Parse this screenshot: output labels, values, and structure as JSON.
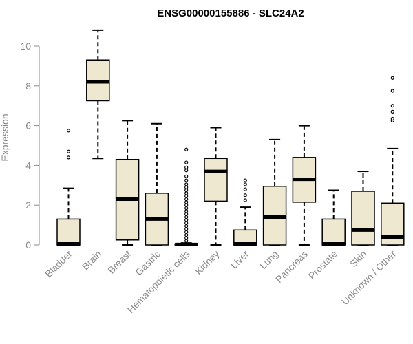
{
  "chart_data": {
    "type": "boxplot",
    "title": "ENSG00000155886 - SLC24A2",
    "ylabel": "Expression",
    "xlabel": "",
    "ylim": [
      0,
      11
    ],
    "yticks": [
      0,
      2,
      4,
      6,
      8,
      10
    ],
    "grid": false,
    "colors": {
      "box_fill": "#efe8d0",
      "stroke": "#000000",
      "axis": "#8a8a8a"
    },
    "categories": [
      "Bladder",
      "Brain",
      "Breast",
      "Gastric",
      "Hematopoietic cells",
      "Kidney",
      "Liver",
      "Lung",
      "Pancreas",
      "Prostate",
      "Skin",
      "Unknown / Other"
    ],
    "boxes": [
      {
        "category": "Bladder",
        "min": 0,
        "q1": 0,
        "median": 0.05,
        "q3": 1.3,
        "max": 2.85,
        "outliers": [
          4.4,
          4.7,
          5.75
        ]
      },
      {
        "category": "Brain",
        "min": 4.35,
        "q1": 7.25,
        "median": 8.2,
        "q3": 9.3,
        "max": 10.8,
        "outliers": []
      },
      {
        "category": "Breast",
        "min": 0,
        "q1": 0.25,
        "median": 2.3,
        "q3": 4.3,
        "max": 6.25,
        "outliers": []
      },
      {
        "category": "Gastric",
        "min": 0,
        "q1": 0,
        "median": 1.3,
        "q3": 2.6,
        "max": 6.1,
        "outliers": []
      },
      {
        "category": "Hematopoietic cells",
        "min": 0,
        "q1": 0,
        "median": 0.02,
        "q3": 0.05,
        "max": 0.1,
        "outliers": [
          0.2,
          0.35,
          0.5,
          0.65,
          0.8,
          0.95,
          1.1,
          1.25,
          1.4,
          1.55,
          1.7,
          1.85,
          2.0,
          2.15,
          2.3,
          2.45,
          2.6,
          2.75,
          2.9,
          3.05,
          3.25,
          3.45,
          3.75,
          3.9,
          4.15,
          4.8
        ]
      },
      {
        "category": "Kidney",
        "min": 0,
        "q1": 2.2,
        "median": 3.7,
        "q3": 4.35,
        "max": 5.9,
        "outliers": []
      },
      {
        "category": "Liver",
        "min": 0,
        "q1": 0,
        "median": 0.05,
        "q3": 0.75,
        "max": 1.9,
        "outliers": [
          2.25,
          2.5,
          2.8,
          3.05,
          3.25
        ]
      },
      {
        "category": "Lung",
        "min": 0,
        "q1": 0,
        "median": 1.4,
        "q3": 2.95,
        "max": 5.3,
        "outliers": []
      },
      {
        "category": "Pancreas",
        "min": 0,
        "q1": 2.15,
        "median": 3.3,
        "q3": 4.4,
        "max": 6.0,
        "outliers": []
      },
      {
        "category": "Prostate",
        "min": 0,
        "q1": 0,
        "median": 0.05,
        "q3": 1.3,
        "max": 2.75,
        "outliers": []
      },
      {
        "category": "Skin",
        "min": 0,
        "q1": 0,
        "median": 0.75,
        "q3": 2.7,
        "max": 3.7,
        "outliers": []
      },
      {
        "category": "Unknown / Other",
        "min": 0,
        "q1": 0,
        "median": 0.4,
        "q3": 2.1,
        "max": 4.85,
        "outliers": [
          6.25,
          6.35,
          6.7,
          7.0,
          7.75,
          8.4
        ]
      }
    ]
  }
}
